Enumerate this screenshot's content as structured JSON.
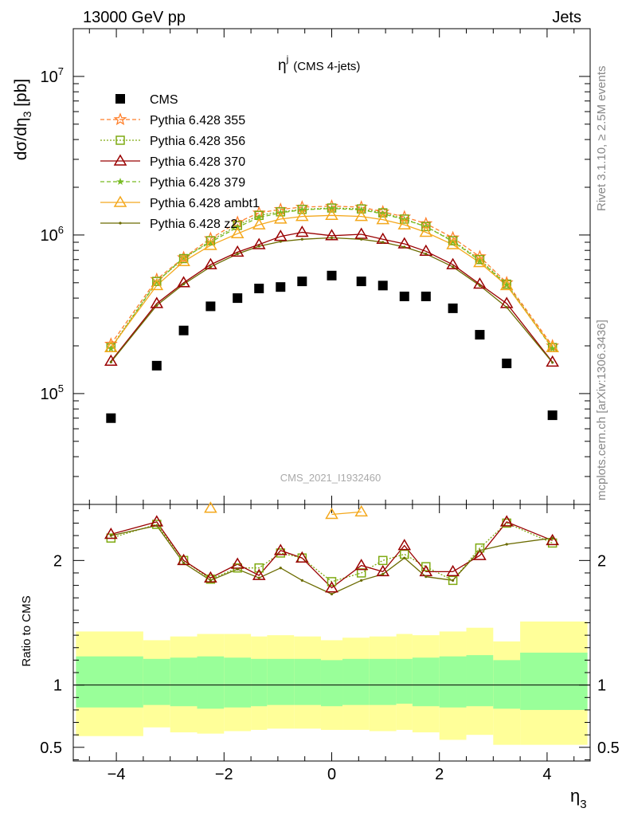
{
  "header": {
    "left": "13000 GeV pp",
    "right": "Jets"
  },
  "side_labels": {
    "rivet": "Rivet 3.1.10, ≥ 2.5M events",
    "mcplots": "mcplots.cern.ch [arXiv:1306.3436]"
  },
  "plot_title": {
    "main": "η",
    "sup": "j",
    "sub": "(CMS 4-jets)"
  },
  "watermark": "CMS_2021_I1932460",
  "chart_data": [
    {
      "type": "scatter",
      "panel": "main",
      "ylabel": "dσ/dη₃ [pb]",
      "ylabel_parts": {
        "a": "dσ/dη",
        "sub": "3",
        "b": " [pb]"
      },
      "yscale": "log",
      "ylim": [
        20000,
        20000000
      ],
      "xlim": [
        -4.8,
        4.8
      ],
      "y_ticks": [
        {
          "value": 100000,
          "mant": "10",
          "exp": "5"
        },
        {
          "value": 1000000,
          "mant": "10",
          "exp": "6"
        },
        {
          "value": 10000000,
          "mant": "10",
          "exp": "7"
        }
      ],
      "legend_position": "top-left",
      "x": [
        -4.1,
        -3.25,
        -2.75,
        -2.25,
        -1.75,
        -1.35,
        -0.95,
        -0.55,
        0.0,
        0.55,
        0.95,
        1.35,
        1.75,
        2.25,
        2.75,
        3.25,
        4.1
      ],
      "series": [
        {
          "name": "CMS",
          "color": "#000000",
          "marker": "square-filled",
          "line": "none",
          "values": [
            70000,
            150000,
            250000,
            355000,
            400000,
            460000,
            470000,
            510000,
            555000,
            510000,
            480000,
            410000,
            410000,
            345000,
            235000,
            155000,
            73000
          ]
        },
        {
          "name": "Pythia 6.428 355",
          "color": "#ff7f2a",
          "marker": "star-open",
          "line": "dashed",
          "values": [
            205000,
            525000,
            720000,
            950000,
            1200000,
            1380000,
            1450000,
            1500000,
            1520000,
            1500000,
            1400000,
            1300000,
            1180000,
            960000,
            730000,
            500000,
            200000
          ]
        },
        {
          "name": "Pythia 6.428 356",
          "color": "#7faa12",
          "marker": "square-open",
          "line": "dotted",
          "values": [
            195000,
            510000,
            710000,
            920000,
            1150000,
            1330000,
            1400000,
            1450000,
            1480000,
            1460000,
            1380000,
            1260000,
            1130000,
            920000,
            700000,
            490000,
            195000
          ]
        },
        {
          "name": "Pythia 6.428 370",
          "color": "#990000",
          "marker": "triangle-open",
          "line": "solid",
          "values": [
            160000,
            370000,
            500000,
            650000,
            780000,
            870000,
            980000,
            1040000,
            990000,
            1010000,
            940000,
            880000,
            790000,
            650000,
            490000,
            370000,
            158000
          ]
        },
        {
          "name": "Pythia 6.428 379",
          "color": "#77bb22",
          "marker": "star-filled",
          "line": "dashed",
          "values": [
            192000,
            505000,
            720000,
            900000,
            1120000,
            1290000,
            1380000,
            1440000,
            1470000,
            1440000,
            1360000,
            1250000,
            1130000,
            910000,
            690000,
            485000,
            192000
          ]
        },
        {
          "name": "Pythia 6.428 ambt1",
          "color": "#f4a81d",
          "marker": "triangle-open",
          "line": "solid",
          "values": [
            195000,
            480000,
            680000,
            860000,
            1020000,
            1160000,
            1260000,
            1310000,
            1330000,
            1310000,
            1250000,
            1160000,
            1040000,
            870000,
            670000,
            480000,
            195000
          ]
        },
        {
          "name": "Pythia 6.428 z2",
          "color": "#6b6b00",
          "marker": "dot",
          "line": "solid",
          "values": [
            158000,
            360000,
            490000,
            630000,
            760000,
            850000,
            910000,
            940000,
            960000,
            940000,
            900000,
            840000,
            760000,
            630000,
            480000,
            350000,
            157000
          ]
        }
      ]
    },
    {
      "type": "line",
      "panel": "ratio",
      "ylabel": "Ratio to CMS",
      "ylim": [
        0.39,
        2.45
      ],
      "xlim": [
        -4.8,
        4.8
      ],
      "xlabel": "η₃",
      "xlabel_parts": {
        "a": "η",
        "sub": "3"
      },
      "x_ticks": [
        -4,
        -2,
        0,
        2,
        4
      ],
      "x_tick_labels": [
        "−4",
        "−2",
        "0",
        "2",
        "4"
      ],
      "y_ticks": [
        0.5,
        1,
        2
      ],
      "y_tick_labels": [
        "0.5",
        "1",
        "2"
      ],
      "reference_line": 1,
      "bin_edges": [
        -4.75,
        -3.5,
        -3.0,
        -2.5,
        -2.0,
        -1.5,
        -1.2,
        -0.7,
        -0.2,
        0.2,
        0.7,
        1.2,
        1.5,
        2.0,
        2.5,
        3.0,
        3.5,
        4.75
      ],
      "band_outer": [
        [
          0.59,
          1.43
        ],
        [
          0.66,
          1.36
        ],
        [
          0.62,
          1.39
        ],
        [
          0.61,
          1.41
        ],
        [
          0.63,
          1.41
        ],
        [
          0.64,
          1.39
        ],
        [
          0.65,
          1.4
        ],
        [
          0.65,
          1.39
        ],
        [
          0.64,
          1.36
        ],
        [
          0.64,
          1.38
        ],
        [
          0.63,
          1.39
        ],
        [
          0.64,
          1.41
        ],
        [
          0.62,
          1.4
        ],
        [
          0.56,
          1.43
        ],
        [
          0.6,
          1.46
        ],
        [
          0.52,
          1.35
        ],
        [
          0.52,
          1.51
        ]
      ],
      "band_inner": [
        [
          0.82,
          1.23
        ],
        [
          0.84,
          1.21
        ],
        [
          0.83,
          1.22
        ],
        [
          0.81,
          1.23
        ],
        [
          0.82,
          1.22
        ],
        [
          0.83,
          1.21
        ],
        [
          0.84,
          1.21
        ],
        [
          0.84,
          1.21
        ],
        [
          0.83,
          1.2
        ],
        [
          0.84,
          1.21
        ],
        [
          0.84,
          1.21
        ],
        [
          0.85,
          1.21
        ],
        [
          0.83,
          1.22
        ],
        [
          0.82,
          1.23
        ],
        [
          0.83,
          1.24
        ],
        [
          0.81,
          1.2
        ],
        [
          0.8,
          1.26
        ]
      ],
      "band_colors": {
        "outer": "#ffff99",
        "inner": "#99ff99"
      },
      "x": [
        -4.1,
        -3.25,
        -2.75,
        -2.25,
        -1.75,
        -1.35,
        -0.95,
        -0.55,
        0.0,
        0.55,
        0.95,
        1.35,
        1.75,
        2.25,
        2.75,
        3.25,
        4.1
      ],
      "series": [
        {
          "name": "Pythia 6.428 355",
          "values": [
            null,
            null,
            null,
            null,
            null,
            null,
            null,
            null,
            null,
            null,
            null,
            null,
            null,
            null,
            null,
            null,
            null
          ]
        },
        {
          "name": "Pythia 6.428 356",
          "values": [
            2.18,
            2.29,
            2.0,
            1.85,
            1.94,
            1.94,
            2.06,
            2.02,
            1.83,
            1.9,
            2.0,
            2.05,
            1.95,
            1.84,
            2.1,
            2.3,
            2.14
          ]
        },
        {
          "name": "Pythia 6.428 370",
          "values": [
            2.21,
            2.31,
            2.0,
            1.86,
            1.97,
            1.88,
            2.08,
            2.02,
            1.78,
            1.96,
            1.91,
            2.12,
            1.91,
            1.91,
            2.04,
            2.31,
            2.16
          ]
        },
        {
          "name": "Pythia 6.428 379",
          "values": [
            null,
            null,
            null,
            null,
            null,
            null,
            null,
            null,
            null,
            null,
            null,
            null,
            null,
            null,
            null,
            null,
            null
          ]
        },
        {
          "name": "Pythia 6.428 ambt1",
          "values": [
            null,
            null,
            null,
            2.42,
            null,
            null,
            null,
            null,
            2.37,
            2.39,
            null,
            null,
            null,
            null,
            null,
            null,
            null
          ]
        },
        {
          "name": "Pythia 6.428 z2",
          "values": [
            2.2,
            2.28,
            1.98,
            1.84,
            1.93,
            1.86,
            1.94,
            1.84,
            1.73,
            1.84,
            1.89,
            2.02,
            1.87,
            1.84,
            2.08,
            2.13,
            2.18
          ]
        }
      ]
    }
  ]
}
